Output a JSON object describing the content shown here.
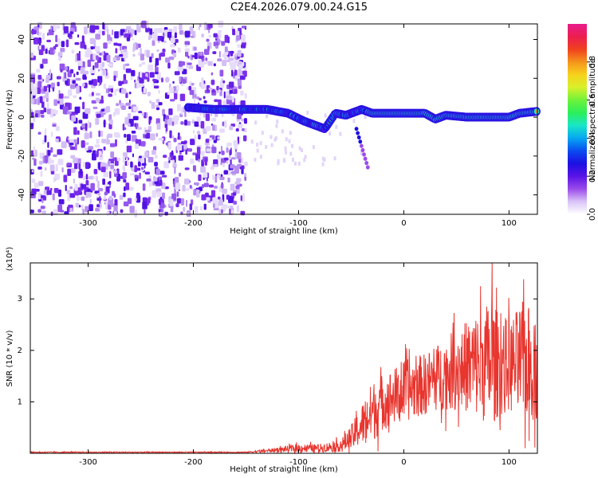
{
  "title": "C2E4.2026.079.00.24.G15",
  "chart_data": [
    {
      "type": "heatmap",
      "xlabel": "Height of straight line (km)",
      "ylabel": "Frequency (Hz)",
      "xlim": [
        -355,
        127
      ],
      "ylim": [
        -50,
        48
      ],
      "xticks": [
        -300,
        -200,
        -100,
        0,
        100
      ],
      "yticks": [
        -40,
        -20,
        0,
        20,
        40
      ],
      "colorbar": {
        "label": "Normalized spectral amplitude",
        "range": [
          0,
          1
        ],
        "ticks": [
          "0.0",
          "0.2",
          "0.4",
          "0.6",
          "0.8"
        ],
        "colors": [
          "#ffffff",
          "#d9c4f7",
          "#9b4bea",
          "#5b14e6",
          "#1c0fe2",
          "#0a4cf0",
          "#06a7f1",
          "#19e6c8",
          "#2bef5a",
          "#6ff23a",
          "#d8f02a",
          "#f8d21c",
          "#f5931c",
          "#f0411e",
          "#ec1e4f",
          "#e81c8c"
        ]
      },
      "ridge": {
        "description": "strong signal ridge near 0 Hz",
        "points": [
          [
            -205,
            5
          ],
          [
            -180,
            4
          ],
          [
            -150,
            4
          ],
          [
            -130,
            4
          ],
          [
            -110,
            2
          ],
          [
            -95,
            -2
          ],
          [
            -85,
            -4
          ],
          [
            -75,
            -6
          ],
          [
            -65,
            2
          ],
          [
            -55,
            1
          ],
          [
            -40,
            4
          ],
          [
            -30,
            2
          ],
          [
            0,
            2
          ],
          [
            20,
            2
          ],
          [
            30,
            -1
          ],
          [
            40,
            1
          ],
          [
            60,
            0
          ],
          [
            80,
            0
          ],
          [
            100,
            0
          ],
          [
            110,
            2
          ],
          [
            127,
            3
          ]
        ]
      },
      "noise_region": [
        -355,
        -150
      ]
    },
    {
      "type": "line",
      "xlabel": "Height of straight line (km)",
      "ylabel": "SNR (10 * v/v)",
      "y_scale_label": "(x10⁴)",
      "xlim": [
        -355,
        127
      ],
      "ylim": [
        0,
        3.7
      ],
      "xticks": [
        -300,
        -200,
        -100,
        0,
        100
      ],
      "yticks": [
        1,
        2,
        3
      ],
      "color": "#e8352e",
      "envelope": {
        "description": "approximate SNR trend along height (x10^4 units)",
        "x": [
          -355,
          -150,
          -130,
          -100,
          -80,
          -60,
          -50,
          -40,
          -30,
          -20,
          -10,
          0,
          20,
          40,
          60,
          80,
          100,
          115,
          127
        ],
        "mean": [
          0.02,
          0.02,
          0.05,
          0.1,
          0.1,
          0.15,
          0.3,
          0.55,
          0.8,
          1.0,
          1.1,
          1.2,
          1.35,
          1.55,
          1.7,
          1.75,
          1.7,
          1.8,
          1.6
        ],
        "spread": [
          0.01,
          0.01,
          0.03,
          0.08,
          0.08,
          0.12,
          0.25,
          0.4,
          0.6,
          0.55,
          0.55,
          0.6,
          0.6,
          0.7,
          0.9,
          1.2,
          0.9,
          1.2,
          1.0
        ],
        "peak": {
          "x": 84,
          "y": 3.7
        }
      }
    }
  ]
}
